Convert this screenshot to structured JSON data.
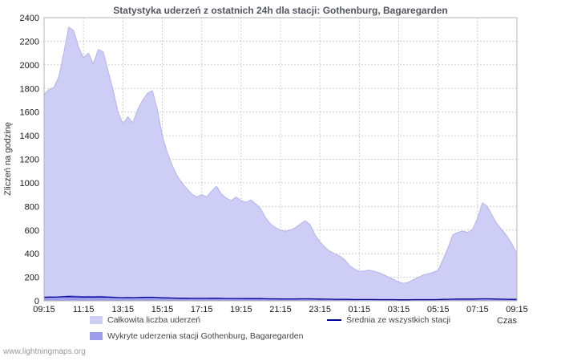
{
  "watermark": "www.lightningmaps.org",
  "chart_data": {
    "type": "area",
    "title": "Statystyka uderzeń z ostatnich 24h dla stacji: Gothenburg, Bagaregarden",
    "xlabel": "Czas",
    "ylabel": "Zliczeń na godzinę",
    "ylim": [
      0,
      2400
    ],
    "ytick_step": 200,
    "grid": true,
    "legend_position": "bottom",
    "x_resolution_minutes": 15,
    "x_ticks": [
      "09:15",
      "11:15",
      "13:15",
      "15:15",
      "17:15",
      "19:15",
      "21:15",
      "23:15",
      "01:15",
      "03:15",
      "05:15",
      "07:15",
      "09:15"
    ],
    "series": [
      {
        "name": "Całkowita liczba uderzeń",
        "type": "area",
        "color": "#cdcdf6",
        "edge_color": "#b3b3ee",
        "values": [
          1750,
          1790,
          1810,
          1900,
          2100,
          2320,
          2290,
          2150,
          2060,
          2100,
          2010,
          2130,
          2110,
          1950,
          1790,
          1600,
          1500,
          1560,
          1510,
          1620,
          1700,
          1760,
          1780,
          1620,
          1400,
          1260,
          1150,
          1060,
          1000,
          950,
          905,
          880,
          900,
          880,
          930,
          970,
          905,
          870,
          850,
          880,
          850,
          835,
          855,
          820,
          780,
          700,
          650,
          620,
          600,
          590,
          600,
          620,
          650,
          680,
          645,
          560,
          500,
          455,
          420,
          400,
          380,
          350,
          300,
          270,
          250,
          252,
          260,
          250,
          238,
          220,
          200,
          180,
          160,
          148,
          158,
          180,
          200,
          218,
          230,
          242,
          260,
          350,
          450,
          560,
          580,
          592,
          580,
          605,
          700,
          830,
          800,
          720,
          650,
          600,
          548,
          480,
          400
        ]
      },
      {
        "name": "Wykryte uderzenia stacji Gothenburg, Bagaregarden",
        "type": "area",
        "color": "#9c9cea",
        "edge_color": "#8a8ade",
        "values": [
          32,
          33,
          33,
          35,
          38,
          42,
          42,
          39,
          37,
          38,
          37,
          39,
          38,
          35,
          33,
          29,
          27,
          28,
          27,
          29,
          31,
          32,
          32,
          29,
          25,
          23,
          21,
          19,
          18,
          17,
          16,
          16,
          16,
          16,
          17,
          18,
          16,
          16,
          15,
          16,
          15,
          15,
          16,
          15,
          14,
          13,
          12,
          11,
          11,
          11,
          11,
          11,
          12,
          12,
          12,
          10,
          9,
          8,
          8,
          7,
          7,
          6,
          5,
          5,
          5,
          5,
          5,
          5,
          4,
          4,
          4,
          3,
          3,
          3,
          3,
          3,
          4,
          4,
          4,
          4,
          5,
          6,
          8,
          10,
          11,
          11,
          11,
          11,
          13,
          15,
          15,
          13,
          12,
          11,
          10,
          9,
          7
        ]
      },
      {
        "name": "Średnia ze wszystkich stacji",
        "type": "line",
        "color": "#000099",
        "values": [
          30,
          32,
          31,
          33,
          35,
          36,
          34,
          33,
          32,
          33,
          32,
          33,
          32,
          31,
          30,
          28,
          27,
          28,
          27,
          28,
          29,
          30,
          30,
          28,
          26,
          25,
          24,
          23,
          22,
          22,
          21,
          21,
          21,
          21,
          22,
          22,
          21,
          20,
          20,
          20,
          20,
          19,
          20,
          19,
          19,
          18,
          17,
          17,
          16,
          16,
          16,
          16,
          17,
          17,
          17,
          16,
          15,
          14,
          14,
          13,
          13,
          12,
          12,
          11,
          11,
          11,
          11,
          11,
          10,
          10,
          10,
          10,
          9,
          9,
          9,
          10,
          10,
          10,
          10,
          10,
          11,
          12,
          13,
          14,
          15,
          15,
          15,
          15,
          16,
          17,
          17,
          16,
          15,
          14,
          13,
          12,
          12
        ]
      }
    ]
  }
}
